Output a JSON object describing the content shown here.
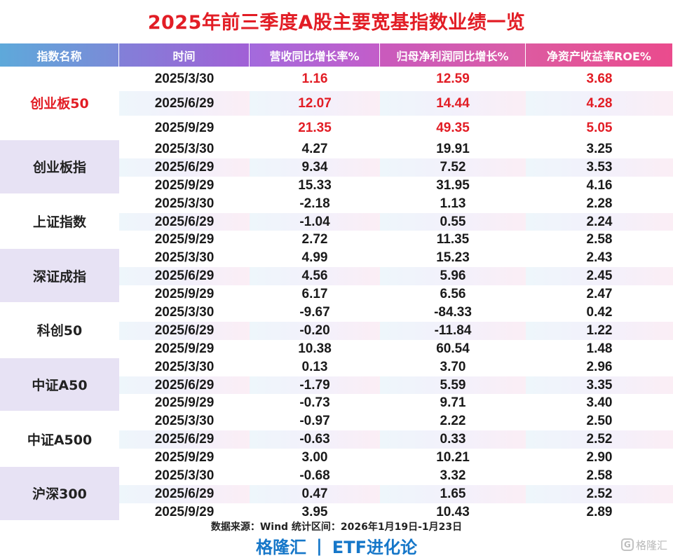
{
  "title": "2025年前三季度A股主要宽基指数业绩一览",
  "columns": [
    "指数名称",
    "时间",
    "营收同比增长率%",
    "归母净利润同比增长%",
    "净资产收益率ROE%"
  ],
  "groups": [
    {
      "name": "创业板50",
      "highlight": true,
      "rows": [
        [
          "2025/3/30",
          "1.16",
          "12.59",
          "3.68"
        ],
        [
          "2025/6/29",
          "12.07",
          "14.44",
          "4.28"
        ],
        [
          "2025/9/29",
          "21.35",
          "49.35",
          "5.05"
        ]
      ]
    },
    {
      "name": "创业板指",
      "highlight": false,
      "rows": [
        [
          "2025/3/30",
          "4.27",
          "19.91",
          "3.25"
        ],
        [
          "2025/6/29",
          "9.34",
          "7.52",
          "3.53"
        ],
        [
          "2025/9/29",
          "15.33",
          "31.95",
          "4.16"
        ]
      ]
    },
    {
      "name": "上证指数",
      "highlight": false,
      "rows": [
        [
          "2025/3/30",
          "-2.18",
          "1.13",
          "2.28"
        ],
        [
          "2025/6/29",
          "-1.04",
          "0.55",
          "2.24"
        ],
        [
          "2025/9/29",
          "2.72",
          "11.35",
          "2.58"
        ]
      ]
    },
    {
      "name": "深证成指",
      "highlight": false,
      "rows": [
        [
          "2025/3/30",
          "4.99",
          "15.23",
          "2.43"
        ],
        [
          "2025/6/29",
          "4.56",
          "5.96",
          "2.45"
        ],
        [
          "2025/9/29",
          "6.17",
          "6.56",
          "2.47"
        ]
      ]
    },
    {
      "name": "科创50",
      "highlight": false,
      "rows": [
        [
          "2025/3/30",
          "-9.67",
          "-84.33",
          "0.42"
        ],
        [
          "2025/6/29",
          "-0.20",
          "-11.84",
          "1.22"
        ],
        [
          "2025/9/29",
          "10.38",
          "60.54",
          "1.48"
        ]
      ]
    },
    {
      "name": "中证A50",
      "highlight": false,
      "rows": [
        [
          "2025/3/30",
          "0.13",
          "3.70",
          "2.96"
        ],
        [
          "2025/6/29",
          "-1.79",
          "5.59",
          "3.35"
        ],
        [
          "2025/9/29",
          "-0.73",
          "9.71",
          "3.40"
        ]
      ]
    },
    {
      "name": "中证A500",
      "highlight": false,
      "rows": [
        [
          "2025/3/30",
          "-0.97",
          "2.22",
          "2.50"
        ],
        [
          "2025/6/29",
          "-0.63",
          "0.33",
          "2.52"
        ],
        [
          "2025/9/29",
          "3.00",
          "10.21",
          "2.90"
        ]
      ]
    },
    {
      "name": "沪深300",
      "highlight": false,
      "rows": [
        [
          "2025/3/30",
          "-0.68",
          "3.32",
          "2.58"
        ],
        [
          "2025/6/29",
          "0.47",
          "1.65",
          "2.52"
        ],
        [
          "2025/9/29",
          "3.95",
          "10.43",
          "2.89"
        ]
      ]
    }
  ],
  "footer": {
    "source": "数据来源：Wind 统计区间：2026年1月19日-1月23日",
    "brand_left": "格隆汇",
    "brand_sep": "|",
    "brand_right": "ETF进化论",
    "watermark_icon": "G",
    "watermark_text": "格隆汇"
  },
  "colors": {
    "title": "#e21d25",
    "highlight": "#e21d25",
    "brand": "#1677c9"
  }
}
